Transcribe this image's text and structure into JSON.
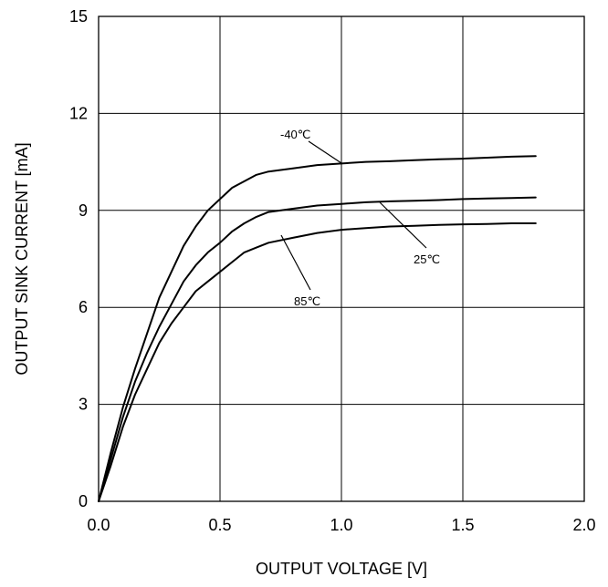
{
  "chart_data": {
    "type": "line",
    "title": "",
    "xlabel": "OUTPUT VOLTAGE [V]",
    "ylabel": "OUTPUT SINK CURRENT [mA]",
    "xlim": [
      0,
      2
    ],
    "ylim": [
      0,
      15
    ],
    "xticks": [
      "0.0",
      "0.5",
      "1.0",
      "1.5",
      "2.0"
    ],
    "yticks": [
      "0",
      "3",
      "6",
      "9",
      "12",
      "15"
    ],
    "grid": true,
    "series": [
      {
        "name": "-40℃",
        "x": [
          0,
          0.05,
          0.1,
          0.15,
          0.2,
          0.25,
          0.3,
          0.35,
          0.4,
          0.45,
          0.5,
          0.55,
          0.6,
          0.65,
          0.7,
          0.8,
          0.9,
          1.0,
          1.1,
          1.2,
          1.3,
          1.4,
          1.5,
          1.6,
          1.7,
          1.8
        ],
        "values": [
          0,
          1.5,
          2.9,
          4.1,
          5.2,
          6.3,
          7.1,
          7.9,
          8.5,
          9.0,
          9.35,
          9.7,
          9.9,
          10.1,
          10.2,
          10.3,
          10.4,
          10.45,
          10.5,
          10.52,
          10.55,
          10.58,
          10.6,
          10.63,
          10.66,
          10.68
        ]
      },
      {
        "name": "25℃",
        "x": [
          0,
          0.05,
          0.1,
          0.15,
          0.2,
          0.25,
          0.3,
          0.35,
          0.4,
          0.45,
          0.5,
          0.55,
          0.6,
          0.65,
          0.7,
          0.8,
          0.9,
          1.0,
          1.1,
          1.2,
          1.3,
          1.4,
          1.5,
          1.6,
          1.7,
          1.8
        ],
        "values": [
          0,
          1.3,
          2.6,
          3.7,
          4.6,
          5.4,
          6.1,
          6.8,
          7.3,
          7.7,
          8.0,
          8.35,
          8.6,
          8.8,
          8.95,
          9.05,
          9.15,
          9.2,
          9.25,
          9.28,
          9.3,
          9.32,
          9.35,
          9.37,
          9.38,
          9.4
        ]
      },
      {
        "name": "85℃",
        "x": [
          0,
          0.05,
          0.1,
          0.15,
          0.2,
          0.25,
          0.3,
          0.35,
          0.4,
          0.45,
          0.5,
          0.55,
          0.6,
          0.65,
          0.7,
          0.8,
          0.9,
          1.0,
          1.1,
          1.2,
          1.3,
          1.4,
          1.5,
          1.6,
          1.7,
          1.8
        ],
        "values": [
          0,
          1.1,
          2.3,
          3.3,
          4.1,
          4.9,
          5.5,
          6.0,
          6.5,
          6.8,
          7.1,
          7.4,
          7.7,
          7.85,
          8.0,
          8.15,
          8.3,
          8.4,
          8.45,
          8.5,
          8.52,
          8.55,
          8.57,
          8.58,
          8.6,
          8.6
        ]
      }
    ],
    "annotations": [
      "-40℃",
      "25℃",
      "85℃"
    ]
  }
}
